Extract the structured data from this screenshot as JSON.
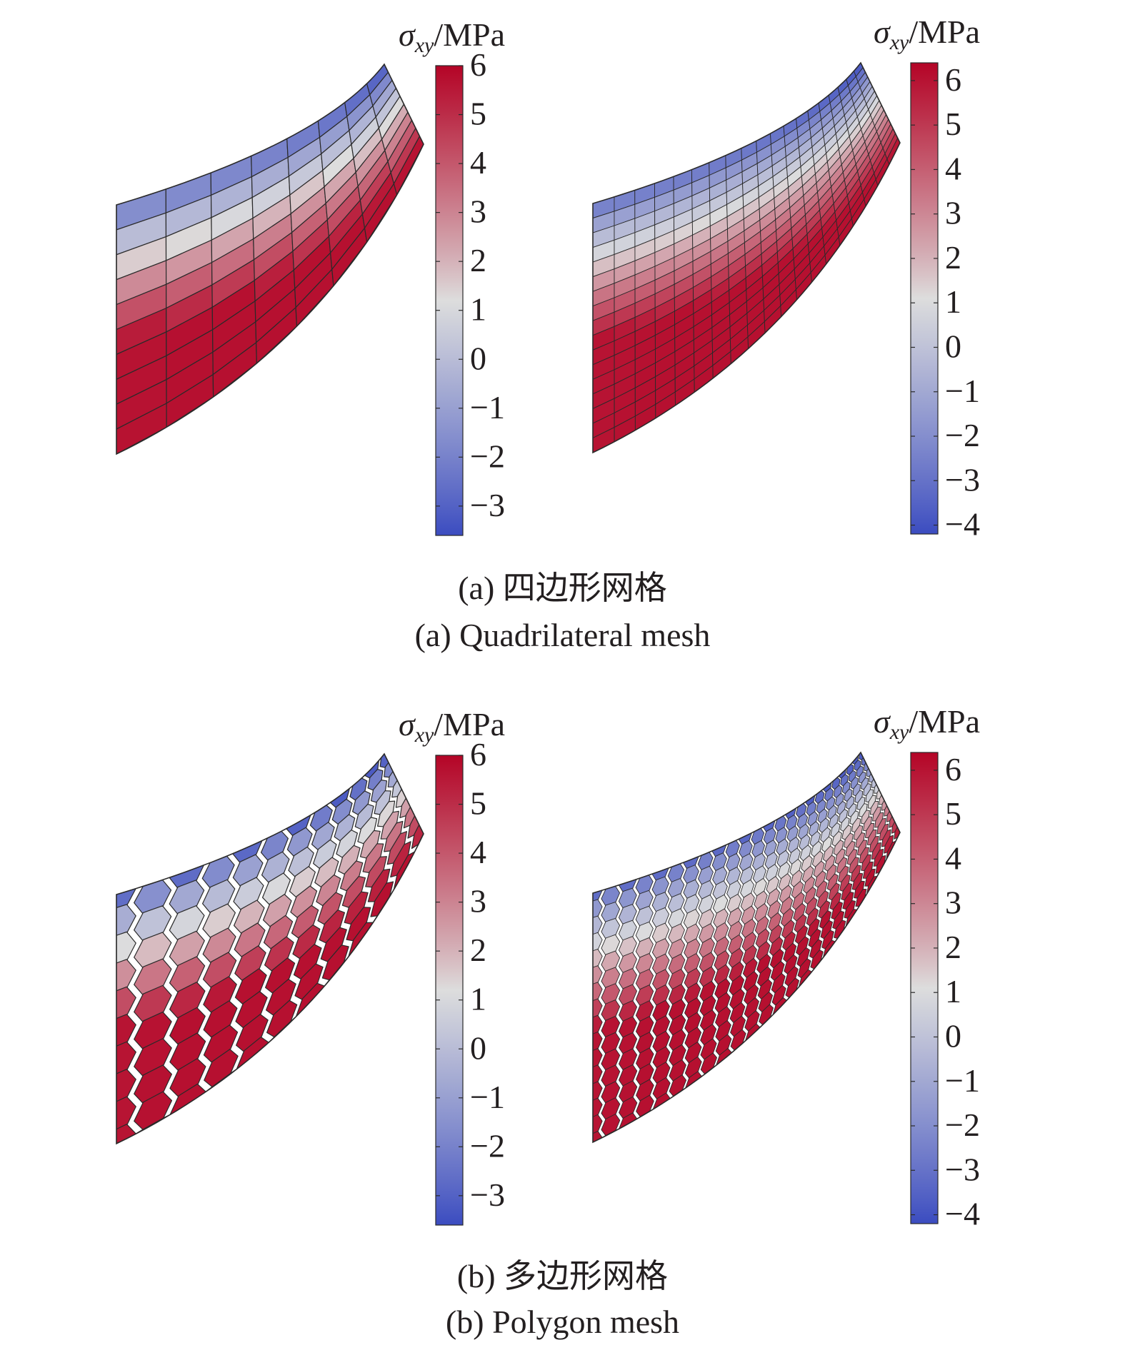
{
  "colors": {
    "negative_end": "#3b4cc0",
    "zero_mid": "#dddddd",
    "positive_end": "#b40426",
    "mesh_line": "#2a2a2a"
  },
  "colorbar_title": {
    "symbol": "σ",
    "subscript": "xy",
    "unit": "/MPa"
  },
  "panels": [
    {
      "id": "a",
      "caption_zh": "(a) 四边形网格",
      "caption_en": "(a) Quadrilateral mesh",
      "plots": [
        {
          "mesh": "quadrilateral",
          "density": "coarse",
          "scale_min": -3.6,
          "scale_max": 6.0,
          "ticks": [
            "6",
            "5",
            "4",
            "3",
            "2",
            "1",
            "0",
            "−1",
            "−2",
            "−3"
          ]
        },
        {
          "mesh": "quadrilateral",
          "density": "fine",
          "scale_min": -4.2,
          "scale_max": 6.4,
          "ticks": [
            "6",
            "5",
            "4",
            "3",
            "2",
            "1",
            "0",
            "−1",
            "−2",
            "−3",
            "−4"
          ]
        }
      ]
    },
    {
      "id": "b",
      "caption_zh": "(b) 多边形网格",
      "caption_en": "(b) Polygon mesh",
      "plots": [
        {
          "mesh": "polygon",
          "density": "coarse",
          "scale_min": -3.6,
          "scale_max": 6.0,
          "ticks": [
            "6",
            "5",
            "4",
            "3",
            "2",
            "1",
            "0",
            "−1",
            "−2",
            "−3"
          ]
        },
        {
          "mesh": "polygon",
          "density": "fine",
          "scale_min": -4.2,
          "scale_max": 6.4,
          "ticks": [
            "6",
            "5",
            "4",
            "3",
            "2",
            "1",
            "0",
            "−1",
            "−2",
            "−3",
            "−4"
          ]
        }
      ]
    }
  ]
}
